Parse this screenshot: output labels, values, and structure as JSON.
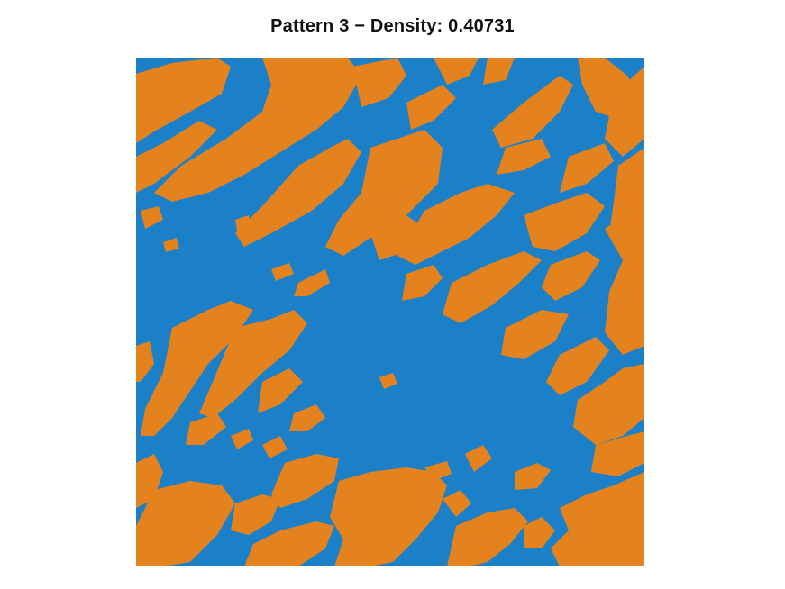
{
  "figure": {
    "title": "Pattern 3 − Density: 0.40731"
  },
  "pattern": {
    "index": 3,
    "density": 0.40731,
    "colors": {
      "background_phase": "#1c80c8",
      "foreground_phase": "#e4821e",
      "page": "#ffffff"
    }
  }
}
